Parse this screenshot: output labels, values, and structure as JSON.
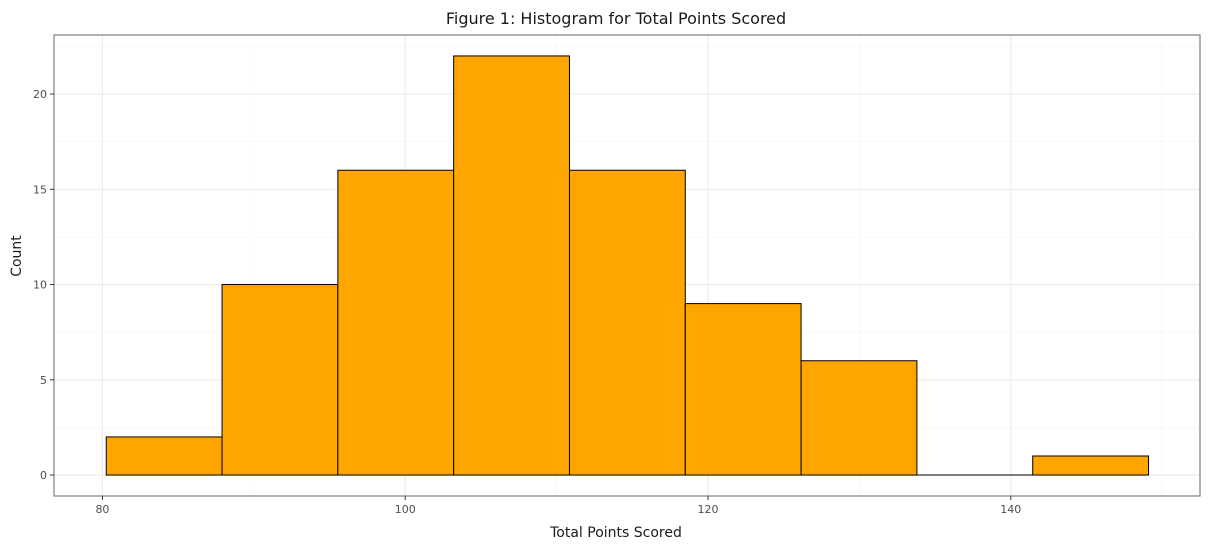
{
  "chart_data": {
    "type": "bar",
    "title": "Figure 1: Histogram for Total Points Scored",
    "xlabel": "Total Points Scored",
    "ylabel": "Count",
    "bins": [
      {
        "x0": 80.25,
        "x1": 87.9,
        "count": 2
      },
      {
        "x0": 87.9,
        "x1": 95.55,
        "count": 10
      },
      {
        "x0": 95.55,
        "x1": 103.2,
        "count": 16
      },
      {
        "x0": 103.2,
        "x1": 110.85,
        "count": 22
      },
      {
        "x0": 110.85,
        "x1": 118.5,
        "count": 16
      },
      {
        "x0": 118.5,
        "x1": 126.15,
        "count": 9
      },
      {
        "x0": 126.15,
        "x1": 133.8,
        "count": 6
      },
      {
        "x0": 133.8,
        "x1": 141.45,
        "count": 0
      },
      {
        "x0": 141.45,
        "x1": 149.1,
        "count": 1
      }
    ],
    "xlim": [
      76.8,
      152.5
    ],
    "ylim": [
      -1.1,
      23.1
    ],
    "x_ticks": [
      80,
      100,
      120,
      140
    ],
    "y_ticks": [
      0,
      5,
      10,
      15,
      20
    ],
    "grid": true,
    "legend": "none",
    "colors": {
      "bar_fill": "#FFA500",
      "bar_stroke": "#000000",
      "grid_major": "#ebebeb",
      "grid_minor": "#f5f5f5",
      "panel_border": "#7f7f7f"
    }
  }
}
